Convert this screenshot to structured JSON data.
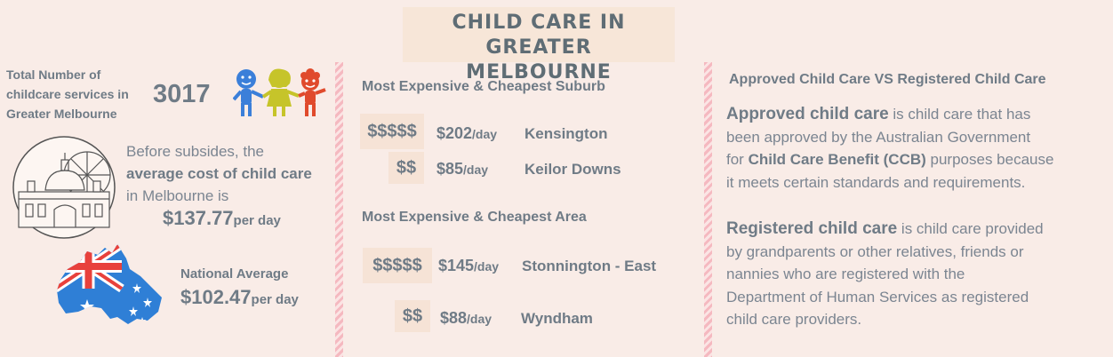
{
  "title": {
    "line1": "CHILD CARE IN GREATER",
    "line2": "MELBOURNE"
  },
  "left": {
    "total_label": {
      "line1": "Total Number of",
      "line2": "childcare services in",
      "line3": "Greater Melbourne"
    },
    "total_value": "3017",
    "avg_text": {
      "pre": "Before subsides, the",
      "strong": "average cost of child care",
      "post": "in Melbourne is"
    },
    "avg_value": "$137.77",
    "avg_unit": "per day",
    "national_label": "National Average",
    "national_value": "$102.47",
    "national_unit": "per day",
    "colors": {
      "kid_blue": "#3b7fd9",
      "kid_yellow": "#c6c42a",
      "kid_red": "#e04a2c",
      "flag_blue": "#2f7fd6",
      "flag_red": "#e8413c"
    }
  },
  "middle": {
    "suburb_heading": "Most Expensive & Cheapest Suburb",
    "suburb_rows": [
      {
        "dollars": "$$$$$",
        "amount": "$202",
        "unit": "/day",
        "place": "Kensington"
      },
      {
        "dollars": "$$",
        "amount": "$85",
        "unit": "/day",
        "place": "Keilor Downs"
      }
    ],
    "area_heading": "Most Expensive & Cheapest Area",
    "area_rows": [
      {
        "dollars": "$$$$$",
        "amount": "$145",
        "unit": "/day",
        "place": "Stonnington - East"
      },
      {
        "dollars": "$$",
        "amount": "$88",
        "unit": "/day",
        "place": "Wyndham"
      }
    ]
  },
  "right": {
    "heading": "Approved Child Care VS Registered Child Care",
    "approved": {
      "strong": "Approved child care",
      "t1": " is child care that has",
      "t2": "been approved by the Australian Government",
      "t3": "for ",
      "mid": "Child Care Benefit (CCB)",
      "t4": " purposes because",
      "t5": "it meets certain standards and requirements."
    },
    "registered": {
      "strong": "Registered child care",
      "t1": " is child care provided",
      "t2": "by grandparents or other relatives, friends or",
      "t3": "nannies who are registered with the",
      "t4": "Department of Human Services as registered",
      "t5": "child care providers."
    }
  }
}
